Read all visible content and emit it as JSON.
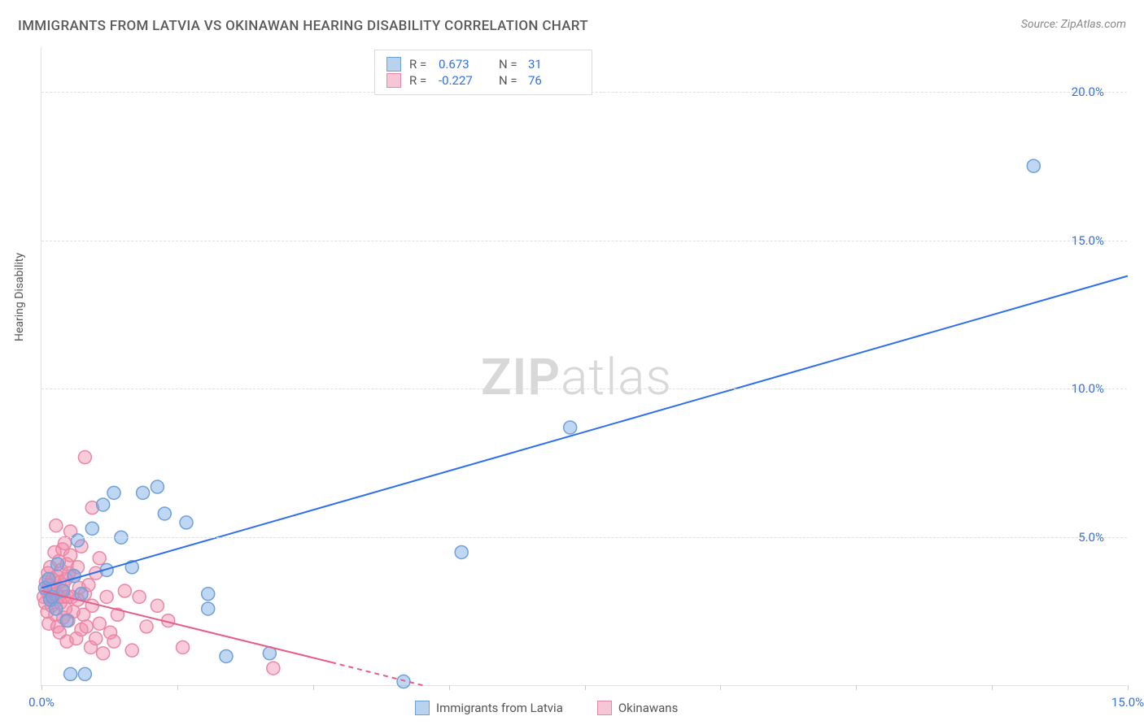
{
  "title": "IMMIGRANTS FROM LATVIA VS OKINAWAN HEARING DISABILITY CORRELATION CHART",
  "source_label": "Source: ZipAtlas.com",
  "watermark_zip": "ZIP",
  "watermark_atlas": "atlas",
  "ylabel": "Hearing Disability",
  "chart": {
    "type": "scatter-with-regression",
    "background_color": "#ffffff",
    "grid_color": "#e0e0e0",
    "axis_color": "#e2e2e2",
    "tick_label_color": "#3b6fd6",
    "xlim": [
      0,
      15
    ],
    "ylim": [
      0,
      21.5
    ],
    "xtick_major": [
      0,
      15
    ],
    "xtick_labels": [
      "0.0%",
      "15.0%"
    ],
    "xtick_minor_step": 1.875,
    "ytick_major": [
      5,
      10,
      15,
      20
    ],
    "ytick_labels": [
      "5.0%",
      "10.0%",
      "15.0%",
      "20.0%"
    ],
    "marker_radius": 8,
    "marker_stroke_width": 1.5,
    "regression_line_width": 2
  },
  "series": [
    {
      "id": "latvia",
      "name": "Immigrants from Latvia",
      "color_fill": "rgba(116,166,230,0.45)",
      "color_stroke": "#6fa0d8",
      "swatch_fill": "#b9d2f0",
      "swatch_border": "#6fa0d8",
      "R": "0.673",
      "N": "31",
      "regression": {
        "x1": 0,
        "y1": 3.3,
        "x2": 15,
        "y2": 13.8,
        "dash": false,
        "color": "#2f6fed"
      },
      "points": [
        [
          0.05,
          3.3
        ],
        [
          0.1,
          3.6
        ],
        [
          0.12,
          2.9
        ],
        [
          0.15,
          3.0
        ],
        [
          0.2,
          2.6
        ],
        [
          0.22,
          4.1
        ],
        [
          0.3,
          3.2
        ],
        [
          0.35,
          2.2
        ],
        [
          0.4,
          0.4
        ],
        [
          0.45,
          3.7
        ],
        [
          0.5,
          4.9
        ],
        [
          0.55,
          3.1
        ],
        [
          0.6,
          0.4
        ],
        [
          0.7,
          5.3
        ],
        [
          0.85,
          6.1
        ],
        [
          0.9,
          3.9
        ],
        [
          1.0,
          6.5
        ],
        [
          1.1,
          5.0
        ],
        [
          1.25,
          4.0
        ],
        [
          1.4,
          6.5
        ],
        [
          1.6,
          6.7
        ],
        [
          1.7,
          5.8
        ],
        [
          2.0,
          5.5
        ],
        [
          2.3,
          2.6
        ],
        [
          2.3,
          3.1
        ],
        [
          2.55,
          1.0
        ],
        [
          3.15,
          1.1
        ],
        [
          5.0,
          0.15
        ],
        [
          5.8,
          4.5
        ],
        [
          7.3,
          8.7
        ],
        [
          13.7,
          17.5
        ]
      ]
    },
    {
      "id": "okinawans",
      "name": "Okinawans",
      "color_fill": "rgba(245,140,170,0.45)",
      "color_stroke": "#e888a6",
      "swatch_fill": "#f6c6d6",
      "swatch_border": "#e888a6",
      "R": "-0.227",
      "N": "76",
      "regression": {
        "x1": 0,
        "y1": 3.2,
        "x2": 4.0,
        "y2": 0.8,
        "dash": false,
        "color": "#e75d88"
      },
      "regression_ext": {
        "x1": 4.0,
        "y1": 0.8,
        "x2": 5.3,
        "y2": 0.0,
        "dash": true,
        "color": "#e75d88"
      },
      "points": [
        [
          0.03,
          3.0
        ],
        [
          0.05,
          2.8
        ],
        [
          0.06,
          3.5
        ],
        [
          0.07,
          3.2
        ],
        [
          0.08,
          2.5
        ],
        [
          0.09,
          3.8
        ],
        [
          0.1,
          3.4
        ],
        [
          0.1,
          2.1
        ],
        [
          0.11,
          3.0
        ],
        [
          0.12,
          4.0
        ],
        [
          0.13,
          3.2
        ],
        [
          0.14,
          2.7
        ],
        [
          0.15,
          3.6
        ],
        [
          0.16,
          2.9
        ],
        [
          0.17,
          3.3
        ],
        [
          0.18,
          4.5
        ],
        [
          0.19,
          2.4
        ],
        [
          0.2,
          3.1
        ],
        [
          0.2,
          5.4
        ],
        [
          0.21,
          3.7
        ],
        [
          0.22,
          2.0
        ],
        [
          0.23,
          3.0
        ],
        [
          0.24,
          4.2
        ],
        [
          0.25,
          3.5
        ],
        [
          0.25,
          1.8
        ],
        [
          0.26,
          2.8
        ],
        [
          0.27,
          3.9
        ],
        [
          0.28,
          3.2
        ],
        [
          0.29,
          4.6
        ],
        [
          0.3,
          2.3
        ],
        [
          0.3,
          3.4
        ],
        [
          0.31,
          3.0
        ],
        [
          0.32,
          4.8
        ],
        [
          0.33,
          2.6
        ],
        [
          0.34,
          3.6
        ],
        [
          0.35,
          4.1
        ],
        [
          0.35,
          1.5
        ],
        [
          0.36,
          3.0
        ],
        [
          0.37,
          2.2
        ],
        [
          0.38,
          3.8
        ],
        [
          0.4,
          4.4
        ],
        [
          0.4,
          5.2
        ],
        [
          0.42,
          3.0
        ],
        [
          0.44,
          2.5
        ],
        [
          0.45,
          3.7
        ],
        [
          0.48,
          1.6
        ],
        [
          0.5,
          4.0
        ],
        [
          0.5,
          2.9
        ],
        [
          0.52,
          3.3
        ],
        [
          0.55,
          1.9
        ],
        [
          0.55,
          4.7
        ],
        [
          0.58,
          2.4
        ],
        [
          0.6,
          3.1
        ],
        [
          0.6,
          7.7
        ],
        [
          0.62,
          2.0
        ],
        [
          0.65,
          3.4
        ],
        [
          0.68,
          1.3
        ],
        [
          0.7,
          6.0
        ],
        [
          0.7,
          2.7
        ],
        [
          0.75,
          1.6
        ],
        [
          0.75,
          3.8
        ],
        [
          0.8,
          2.1
        ],
        [
          0.8,
          4.3
        ],
        [
          0.85,
          1.1
        ],
        [
          0.9,
          3.0
        ],
        [
          0.95,
          1.8
        ],
        [
          1.0,
          1.5
        ],
        [
          1.05,
          2.4
        ],
        [
          1.15,
          3.2
        ],
        [
          1.25,
          1.2
        ],
        [
          1.35,
          3.0
        ],
        [
          1.45,
          2.0
        ],
        [
          1.6,
          2.7
        ],
        [
          1.75,
          2.2
        ],
        [
          1.95,
          1.3
        ],
        [
          3.2,
          0.6
        ]
      ]
    }
  ],
  "legend_bottom": [
    {
      "label": "Immigrants from Latvia",
      "swatch_fill": "#b9d2f0",
      "swatch_border": "#6fa0d8"
    },
    {
      "label": "Okinawans",
      "swatch_fill": "#f6c6d6",
      "swatch_border": "#e888a6"
    }
  ]
}
